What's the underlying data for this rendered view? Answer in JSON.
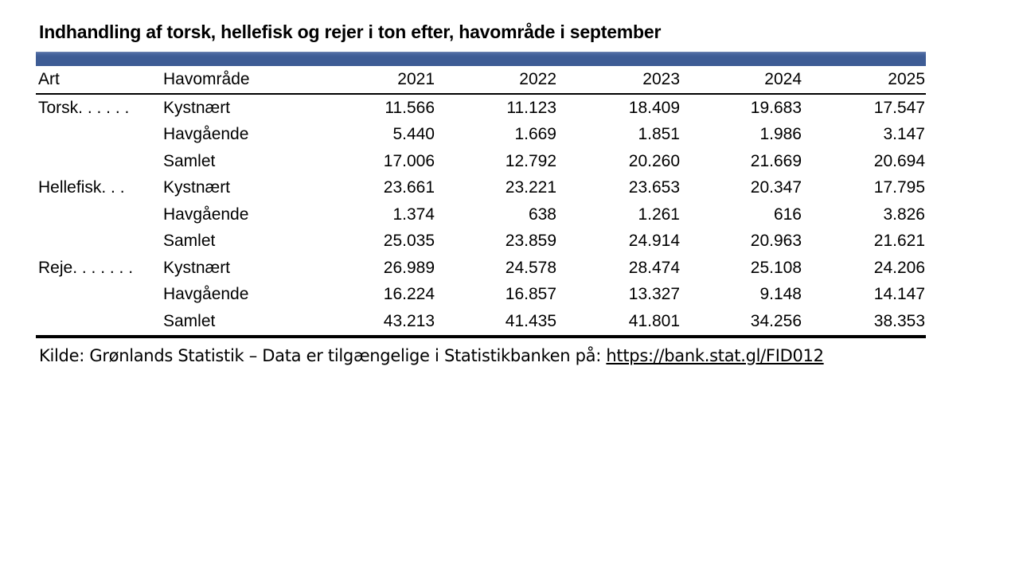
{
  "title": "Indhandling af torsk, hellefisk og rejer i ton efter, havområde i september",
  "colors": {
    "header_bar": "#3e5c95",
    "text": "#000000"
  },
  "table": {
    "headers": [
      "Art",
      "Havområde",
      "2021",
      "2022",
      "2023",
      "2024",
      "2025"
    ],
    "rows": [
      {
        "art": "Torsk. . . . . .",
        "havomraade": "Kystnært",
        "values": [
          "11.566",
          "11.123",
          "18.409",
          "19.683",
          "17.547"
        ]
      },
      {
        "art": "",
        "havomraade": "Havgående",
        "values": [
          "5.440",
          "1.669",
          "1.851",
          "1.986",
          "3.147"
        ]
      },
      {
        "art": "",
        "havomraade": "Samlet",
        "values": [
          "17.006",
          "12.792",
          "20.260",
          "21.669",
          "20.694"
        ]
      },
      {
        "art": "Hellefisk. . .",
        "havomraade": "Kystnært",
        "values": [
          "23.661",
          "23.221",
          "23.653",
          "20.347",
          "17.795"
        ]
      },
      {
        "art": "",
        "havomraade": "Havgående",
        "values": [
          "1.374",
          "638",
          "1.261",
          "616",
          "3.826"
        ]
      },
      {
        "art": "",
        "havomraade": "Samlet",
        "values": [
          "25.035",
          "23.859",
          "24.914",
          "20.963",
          "21.621"
        ]
      },
      {
        "art": "Reje. . . . . . .",
        "havomraade": "Kystnært",
        "values": [
          "26.989",
          "24.578",
          "28.474",
          "25.108",
          "24.206"
        ]
      },
      {
        "art": "",
        "havomraade": "Havgående",
        "values": [
          "16.224",
          "16.857",
          "13.327",
          "9.148",
          "14.147"
        ]
      },
      {
        "art": "",
        "havomraade": "Samlet",
        "values": [
          "43.213",
          "41.435",
          "41.801",
          "34.256",
          "38.353"
        ]
      }
    ]
  },
  "footer": {
    "source_prefix": "Kilde: Grønlands Statistik – Data er tilgængelige i Statistikbanken på: ",
    "link_text": "https://bank.stat.gl/FID012"
  },
  "chart_data": {
    "type": "table",
    "title": "Indhandling af torsk, hellefisk og rejer i ton efter, havområde i september",
    "unit": "ton",
    "columns": [
      "Art",
      "Havområde",
      "2021",
      "2022",
      "2023",
      "2024",
      "2025"
    ],
    "years": [
      2021,
      2022,
      2023,
      2024,
      2025
    ],
    "series": [
      {
        "art": "Torsk",
        "havomraade": "Kystnært",
        "values": [
          11566,
          11123,
          18409,
          19683,
          17547
        ]
      },
      {
        "art": "Torsk",
        "havomraade": "Havgående",
        "values": [
          5440,
          1669,
          1851,
          1986,
          3147
        ]
      },
      {
        "art": "Torsk",
        "havomraade": "Samlet",
        "values": [
          17006,
          12792,
          20260,
          21669,
          20694
        ]
      },
      {
        "art": "Hellefisk",
        "havomraade": "Kystnært",
        "values": [
          23661,
          23221,
          23653,
          20347,
          17795
        ]
      },
      {
        "art": "Hellefisk",
        "havomraade": "Havgående",
        "values": [
          1374,
          638,
          1261,
          616,
          3826
        ]
      },
      {
        "art": "Hellefisk",
        "havomraade": "Samlet",
        "values": [
          25035,
          23859,
          24914,
          20963,
          21621
        ]
      },
      {
        "art": "Reje",
        "havomraade": "Kystnært",
        "values": [
          26989,
          24578,
          28474,
          25108,
          24206
        ]
      },
      {
        "art": "Reje",
        "havomraade": "Havgående",
        "values": [
          16224,
          16857,
          13327,
          9148,
          14147
        ]
      },
      {
        "art": "Reje",
        "havomraade": "Samlet",
        "values": [
          43213,
          41435,
          41801,
          34256,
          38353
        ]
      }
    ],
    "source": "Kilde: Grønlands Statistik – Data er tilgængelige i Statistikbanken på: https://bank.stat.gl/FID012"
  }
}
